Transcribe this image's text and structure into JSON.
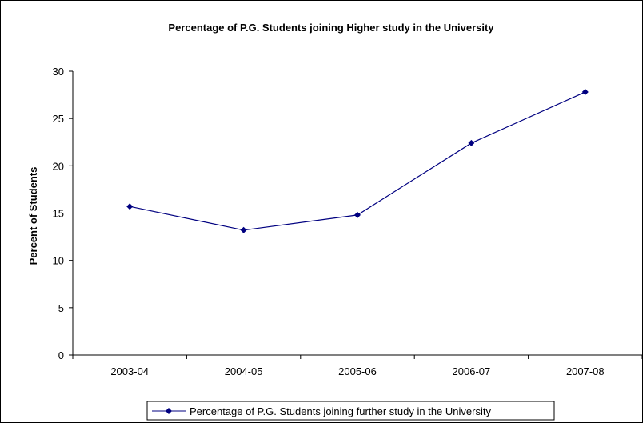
{
  "chart_data": {
    "type": "line",
    "title": "Percentage of P.G. Students joining Higher study in the University",
    "xlabel": "",
    "ylabel": "Percent of Students",
    "categories": [
      "2003-04",
      "2004-05",
      "2005-06",
      "2006-07",
      "2007-08"
    ],
    "yticks": [
      "0",
      "5",
      "10",
      "15",
      "20",
      "25",
      "30"
    ],
    "ylim": [
      0,
      30
    ],
    "grid": false,
    "legend_position": "bottom",
    "series": [
      {
        "name": "Percentage of P.G. Students joining further study in the University",
        "values": [
          15.7,
          13.2,
          14.8,
          22.4,
          27.8
        ],
        "color": "#000080",
        "marker": "diamond"
      }
    ]
  }
}
